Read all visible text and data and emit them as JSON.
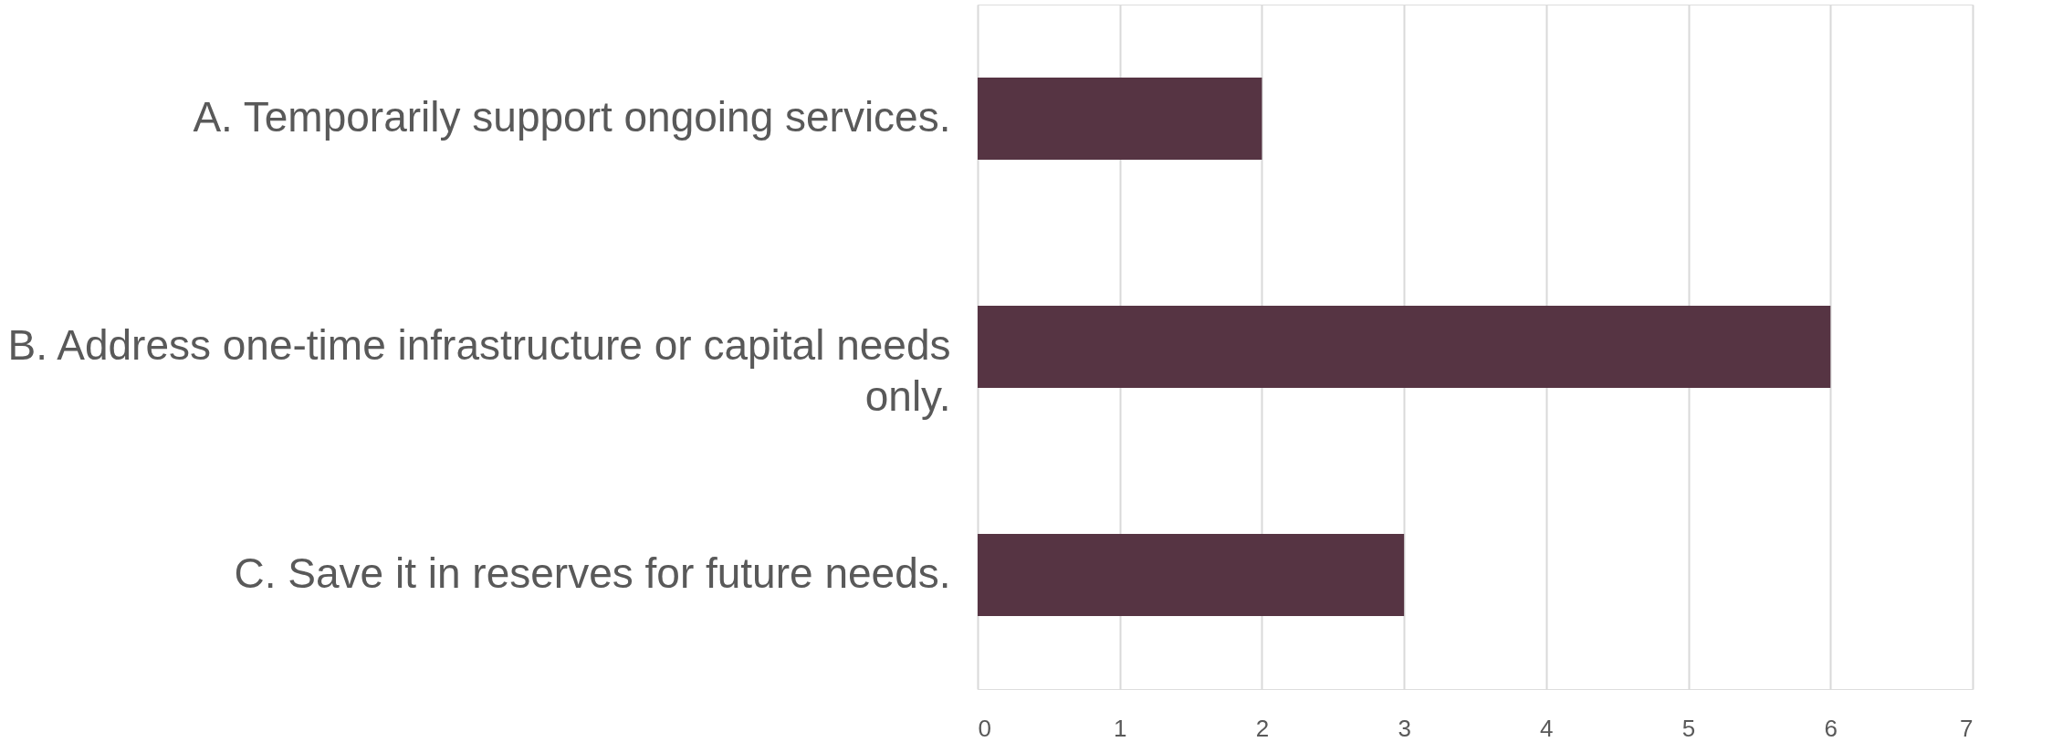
{
  "chart_data": {
    "type": "bar",
    "orientation": "horizontal",
    "categories": [
      "A. Temporarily support ongoing services.",
      "B. Address one-time infrastructure or capital needs only.",
      "C. Save it in reserves for future needs."
    ],
    "values": [
      2,
      6,
      3
    ],
    "color": "#563443",
    "xlim": [
      0,
      7
    ],
    "xticks": [
      0,
      1,
      2,
      3,
      4,
      5,
      6,
      7
    ],
    "grid": "x"
  }
}
